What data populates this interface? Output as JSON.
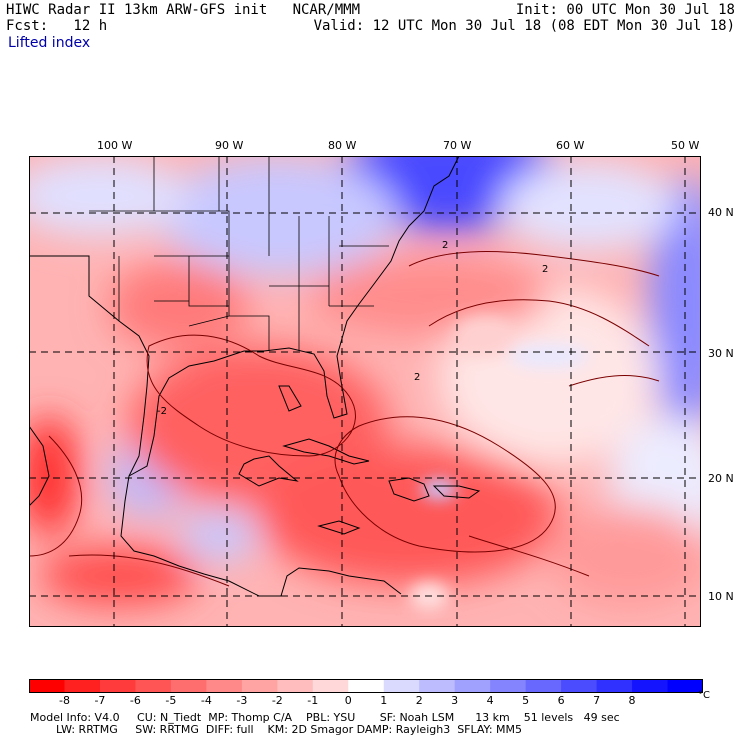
{
  "header": {
    "title": "HIWC Radar II 13km ARW-GFS init   NCAR/MMM",
    "init": "Init: 00 UTC Mon 30 Jul 18",
    "fcst": "Fcst:   12 h",
    "valid": "Valid: 12 UTC Mon 30 Jul 18 (08 EDT Mon 30 Jul 18)",
    "field": "Lifted index"
  },
  "map": {
    "lon_labels": [
      "100 W",
      "90 W",
      "80 W",
      "70 W",
      "60 W",
      "50 W"
    ],
    "lat_labels": [
      "40 N",
      "30 N",
      "20 N",
      "10 N"
    ],
    "contour_labels": [
      "2",
      "2",
      "2",
      "-2"
    ]
  },
  "colorbar": {
    "labels": [
      "-8",
      "-7",
      "-6",
      "-5",
      "-4",
      "-3",
      "-2",
      "-1",
      "0",
      "1",
      "2",
      "3",
      "4",
      "5",
      "6",
      "7",
      "8"
    ],
    "unit": "°C",
    "colors": [
      "#ff0000",
      "#ff2020",
      "#ff3b3b",
      "#ff5555",
      "#ff6e6e",
      "#ff8888",
      "#ffa3a3",
      "#ffbdbd",
      "#ffd9d9",
      "#ffffff",
      "#dadaff",
      "#bcbcff",
      "#a0a0ff",
      "#8484ff",
      "#6868ff",
      "#4c4cff",
      "#3030ff",
      "#1414ff",
      "#0000ff"
    ]
  },
  "model_info": {
    "line1": "Model Info: V4.0     CU: N_Tiedt  MP: Thomp C/A    PBL: YSU       SF: Noah LSM      13 km    51 levels   49 sec",
    "line2": "LW: RRTMG     SW: RRTMG  DIFF: full    KM: 2D Smagor DAMP: Rayleigh3  SFLAY: MM5"
  }
}
